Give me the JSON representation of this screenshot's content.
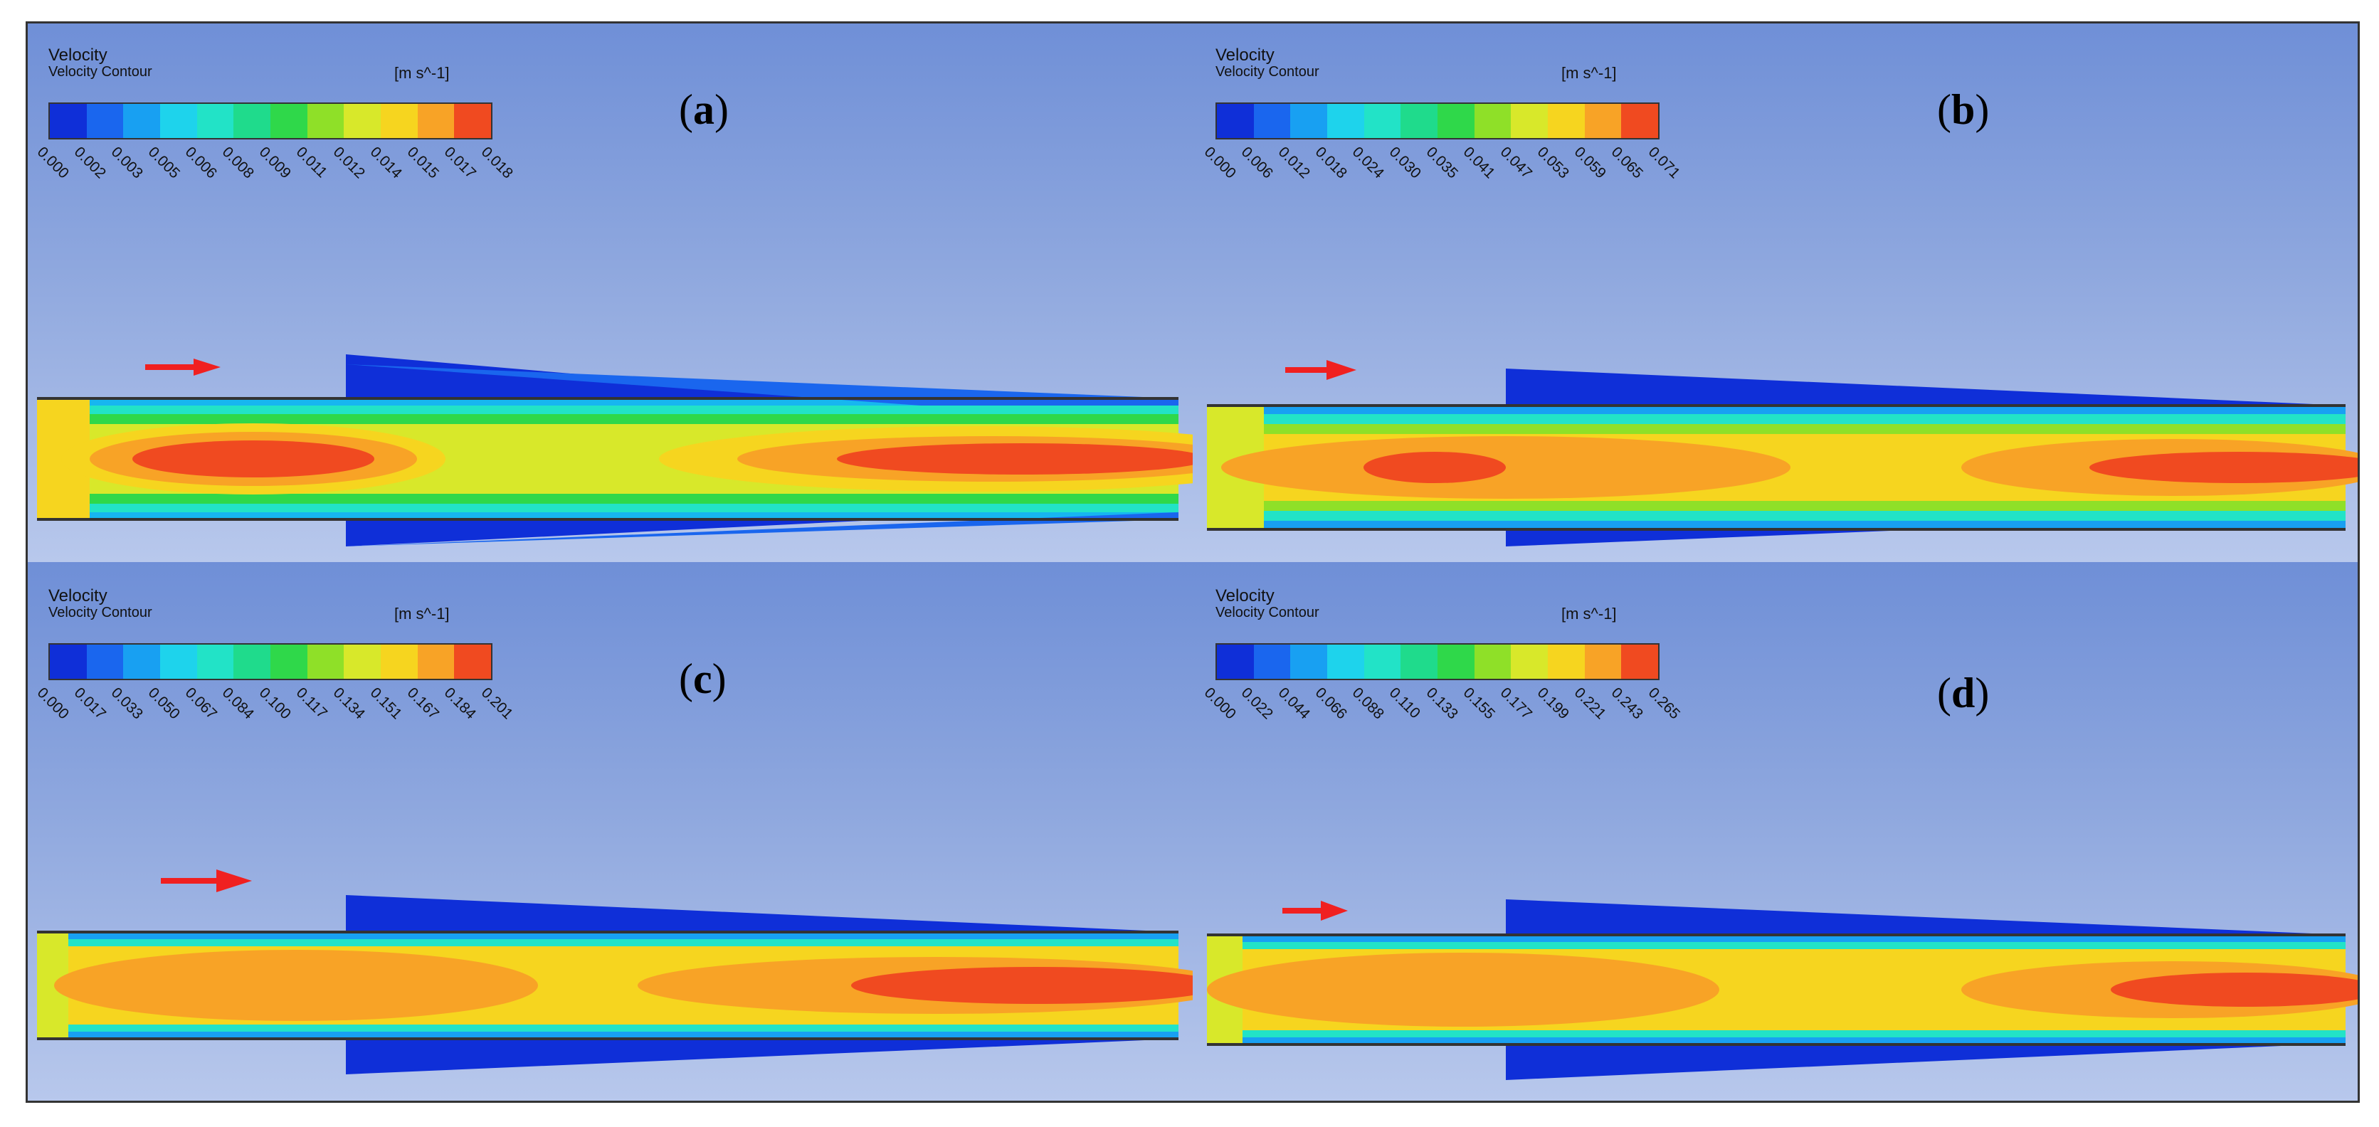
{
  "legend": {
    "title": "Velocity",
    "subtitle": "Velocity Contour",
    "unit": "[m s^-1]"
  },
  "colorbar_colors": [
    "#0f2fd8",
    "#1a66ee",
    "#18a0f2",
    "#1ed3ec",
    "#22e3c7",
    "#1fdb8c",
    "#2fd84a",
    "#8fe028",
    "#d8e82a",
    "#f6d51f",
    "#f8a326",
    "#f04a20"
  ],
  "panels": [
    {
      "label": "a",
      "ticks": [
        "0.000",
        "0.002",
        "0.003",
        "0.005",
        "0.006",
        "0.008",
        "0.009",
        "0.011",
        "0.012",
        "0.014",
        "0.015",
        "0.017",
        "0.018"
      ]
    },
    {
      "label": "b",
      "ticks": [
        "0.000",
        "0.006",
        "0.012",
        "0.018",
        "0.024",
        "0.030",
        "0.035",
        "0.041",
        "0.047",
        "0.053",
        "0.059",
        "0.065",
        "0.071"
      ]
    },
    {
      "label": "c",
      "ticks": [
        "0.000",
        "0.017",
        "0.033",
        "0.050",
        "0.067",
        "0.084",
        "0.100",
        "0.117",
        "0.134",
        "0.151",
        "0.167",
        "0.184",
        "0.201"
      ]
    },
    {
      "label": "d",
      "ticks": [
        "0.000",
        "0.022",
        "0.044",
        "0.066",
        "0.088",
        "0.110",
        "0.133",
        "0.155",
        "0.177",
        "0.199",
        "0.221",
        "0.243",
        "0.265"
      ]
    }
  ]
}
